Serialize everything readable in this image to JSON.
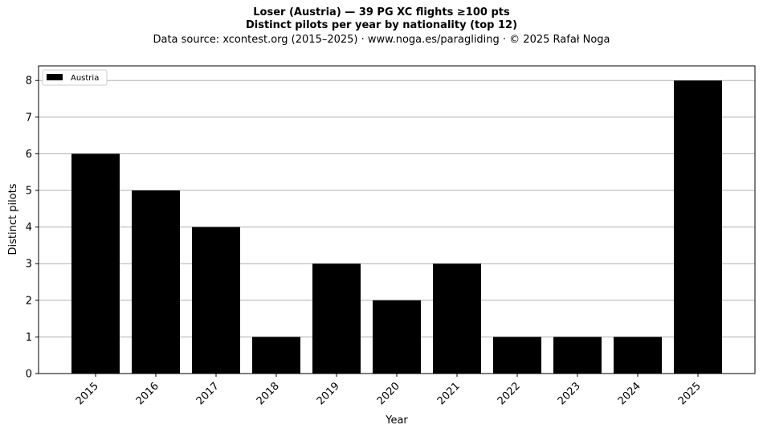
{
  "chart_data": {
    "type": "bar",
    "title": "Loser (Austria)  —  39 PG XC flights ≥100 pts",
    "subtitle": "Distinct pilots per year by nationality (top 12)",
    "source_line": "Data source: xcontest.org (2015–2025)  ·  www.noga.es/paragliding  ·  © 2025 Rafał Noga",
    "xlabel": "Year",
    "ylabel": "Distinct pilots",
    "categories": [
      "2015",
      "2016",
      "2017",
      "2018",
      "2019",
      "2020",
      "2021",
      "2022",
      "2023",
      "2024",
      "2025"
    ],
    "series": [
      {
        "name": "Austria",
        "color": "#000000",
        "values": [
          6,
          5,
          4,
          1,
          3,
          2,
          3,
          1,
          1,
          1,
          8
        ]
      }
    ],
    "ylim": [
      0,
      8.4
    ],
    "yticks": [
      0,
      1,
      2,
      3,
      4,
      5,
      6,
      7,
      8
    ],
    "grid": "horizontal",
    "legend_position": "top-left"
  }
}
